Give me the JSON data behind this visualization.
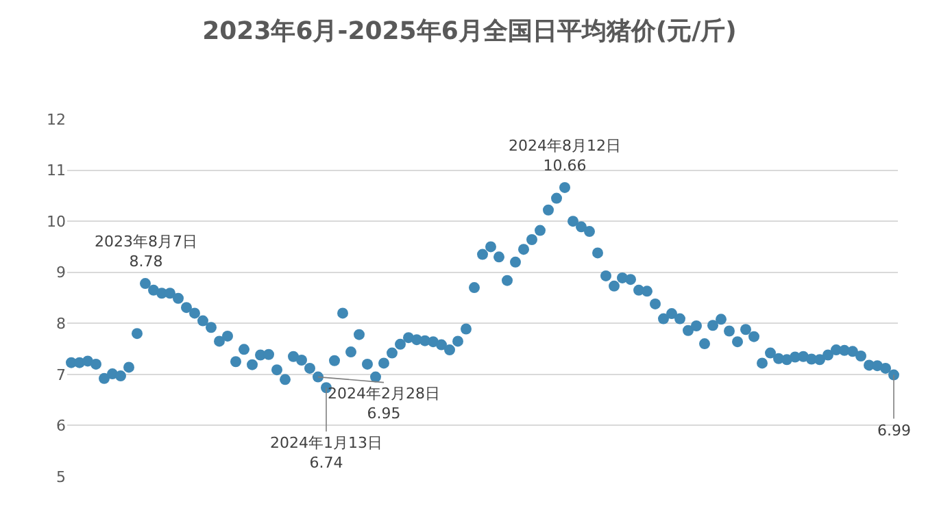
{
  "chart_data": {
    "type": "scatter",
    "title": "2023年6月-2025年6月全国日平均猪价(元/斤)",
    "categories": [
      null,
      null,
      null,
      null,
      null,
      null,
      null,
      null,
      null,
      null,
      null,
      null,
      null,
      null,
      null,
      null,
      null,
      null,
      null,
      null,
      null,
      null,
      null,
      null,
      null,
      null,
      null,
      null,
      null,
      null,
      null,
      null,
      null,
      null,
      null,
      null,
      null,
      null,
      null,
      null,
      null,
      null,
      null,
      null,
      null,
      null,
      null,
      null,
      null,
      null,
      null,
      null,
      null,
      null,
      null,
      null,
      null,
      null,
      null,
      null,
      null,
      null,
      null,
      null,
      null,
      null,
      null,
      null,
      null,
      null,
      null,
      null,
      null,
      null,
      null,
      null,
      null,
      null,
      null,
      null,
      null,
      null,
      null,
      null,
      null,
      null,
      null,
      null,
      null,
      null,
      null,
      null,
      null,
      null,
      null,
      null,
      null,
      null,
      null,
      null,
      null
    ],
    "series": [
      {
        "color": "#3f88b5",
        "values": [
          7.23,
          7.23,
          7.26,
          7.2,
          6.92,
          7.01,
          6.97,
          7.14,
          7.8,
          8.78,
          8.65,
          8.59,
          8.59,
          8.49,
          8.31,
          8.2,
          8.05,
          7.92,
          7.65,
          7.75,
          7.25,
          7.49,
          7.19,
          7.38,
          7.39,
          7.09,
          6.9,
          7.35,
          7.28,
          7.12,
          6.95,
          6.74,
          7.27,
          8.2,
          7.44,
          7.78,
          7.2,
          6.95,
          7.22,
          7.42,
          7.59,
          7.72,
          7.68,
          7.66,
          7.64,
          7.58,
          7.48,
          7.65,
          7.89,
          8.7,
          9.35,
          9.5,
          9.3,
          8.84,
          9.2,
          9.45,
          9.64,
          9.82,
          10.22,
          10.45,
          10.66,
          10.0,
          9.89,
          9.8,
          9.38,
          8.93,
          8.73,
          8.89,
          8.86,
          8.65,
          8.63,
          8.38,
          8.09,
          8.19,
          8.09,
          7.86,
          7.95,
          7.6,
          7.96,
          8.08,
          7.85,
          7.64,
          7.88,
          7.74,
          7.22,
          7.42,
          7.31,
          7.29,
          7.34,
          7.35,
          7.3,
          7.29,
          7.38,
          7.48,
          7.47,
          7.45,
          7.36,
          7.18,
          7.17,
          7.12,
          6.99
        ]
      }
    ],
    "ylim": [
      5,
      12
    ],
    "yticks": [
      5,
      6,
      7,
      8,
      9,
      10,
      11,
      12
    ],
    "grid": "y",
    "marker": "circle",
    "annotations": [
      {
        "text": "2023年8月7日\n8.78",
        "y": 8.78
      },
      {
        "text": "2024年1月13日\n6.74",
        "y": 6.74
      },
      {
        "text": "2024年2月28日\n6.95",
        "y": 6.95
      },
      {
        "text": "2024年8月12日\n10.66",
        "y": 10.66
      },
      {
        "text": "6.99",
        "y": 6.99
      }
    ]
  }
}
